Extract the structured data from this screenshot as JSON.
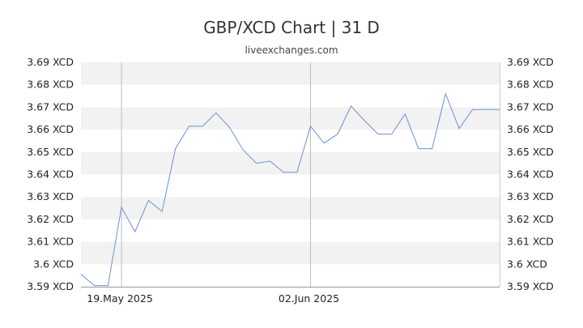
{
  "title": "GBP/XCD Chart | 31 D",
  "subtitle": "liveexchanges.com",
  "colors": {
    "line": "#6f8fd8",
    "band": "#f2f2f2",
    "vline": "#bdbdbd",
    "axis": "#999999"
  },
  "chart_data": {
    "type": "line",
    "title": "GBP/XCD Chart | 31 D",
    "xlabel": "",
    "ylabel": "",
    "ylim": [
      3.59,
      3.69
    ],
    "yticks": [
      3.69,
      3.68,
      3.67,
      3.66,
      3.65,
      3.64,
      3.63,
      3.62,
      3.61,
      3.6,
      3.59
    ],
    "ytick_labels": [
      "3.69 XCD",
      "3.68 XCD",
      "3.67 XCD",
      "3.66 XCD",
      "3.65 XCD",
      "3.64 XCD",
      "3.63 XCD",
      "3.62 XCD",
      "3.61 XCD",
      "3.6 XCD",
      "3.59 XCD"
    ],
    "xtick_labels": [
      {
        "index": 3,
        "label": "19.May 2025"
      },
      {
        "index": 17,
        "label": "02.Jun 2025"
      }
    ],
    "grid": "alternating horizontal bands",
    "series": [
      {
        "values": [
          3.5955,
          3.5905,
          3.5905,
          3.6255,
          3.6145,
          3.6285,
          3.6235,
          3.6515,
          3.6615,
          3.6615,
          3.6675,
          3.661,
          3.651,
          3.645,
          3.646,
          3.641,
          3.641,
          3.6615,
          3.654,
          3.658,
          3.6705,
          3.664,
          3.658,
          3.658,
          3.667,
          3.6515,
          3.6515,
          3.676,
          3.6605,
          3.669,
          3.669,
          3.669
        ]
      }
    ]
  }
}
